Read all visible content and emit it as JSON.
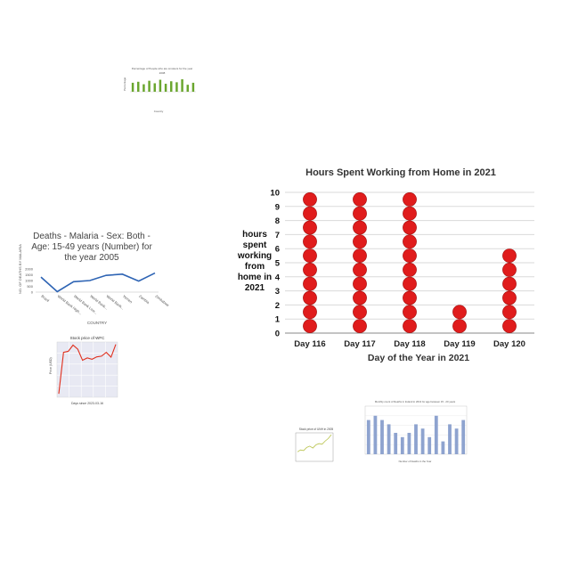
{
  "chart_data": [
    {
      "type": "scatter",
      "title": "Hours Spent Working from Home in 2021",
      "xlabel": "Day of the Year in 2021",
      "ylabel": "hours spent working from home in 2021",
      "categories": [
        "Day 116",
        "Day 117",
        "Day 118",
        "Day 119",
        "Day 120"
      ],
      "values": [
        10,
        10,
        10,
        2,
        6
      ],
      "ylim": [
        0,
        10
      ],
      "yticks": [
        "0",
        "1",
        "2",
        "3",
        "4",
        "5",
        "6",
        "7",
        "8",
        "9",
        "10"
      ],
      "marker_color": "#e01c1c",
      "grid": true
    },
    {
      "type": "line",
      "title": "Deaths - Malaria - Sex: Both - Age: 15-49 years (Number) for the year 2005",
      "xlabel": "COUNTRY",
      "ylabel": "NO. OF DEATHS BY MALARIA",
      "categories": [
        "Brazil",
        "World Bank High...",
        "World Bank Low...",
        "World Bank...",
        "World Bank...",
        "Yemen",
        "Zambia",
        "Zimbabwe"
      ],
      "values": [
        1300,
        40,
        900,
        1000,
        1450,
        1550,
        950,
        1650
      ],
      "yticks": [
        "0",
        "500",
        "1000",
        "1500",
        "2000"
      ],
      "ylim": [
        0,
        2000
      ],
      "line_color": "#2e64b4"
    },
    {
      "type": "line",
      "title": "Stock price of WFC",
      "xlabel": "Days since 2023-03-16",
      "ylabel": "Price (USD)",
      "values": [
        30.5,
        42.5,
        42.8,
        44.6,
        43.4,
        40.2,
        40.9,
        40.5,
        41.2,
        41.4,
        42.5,
        41.1,
        44.8
      ],
      "line_color": "#e0301e",
      "grid": true
    },
    {
      "type": "bar",
      "title": "Percentage of People who are smokers for the year",
      "subtitle": "2008",
      "xlabel": "Country",
      "ylabel": "Percentage",
      "values": [
        18,
        20,
        15,
        22,
        17,
        24,
        16,
        21,
        19,
        25,
        14,
        18
      ],
      "bar_color": "#6aa62e"
    },
    {
      "type": "line",
      "title": "Stock price of UNH in 2005",
      "values": [
        15,
        18,
        17,
        22,
        24,
        21,
        26,
        28,
        27,
        32,
        36,
        42
      ],
      "line_color": "#b8c24a"
    },
    {
      "type": "bar",
      "title": "Monthly count of Deaths in Ireland in 2013 for age between 15 - 20 years",
      "xlabel": "Number of Deaths in the Year",
      "values": [
        8,
        9,
        8,
        7,
        5,
        4,
        5,
        7,
        6,
        4,
        9,
        3,
        7,
        6,
        8
      ],
      "bar_color": "#8ea3cf"
    }
  ]
}
